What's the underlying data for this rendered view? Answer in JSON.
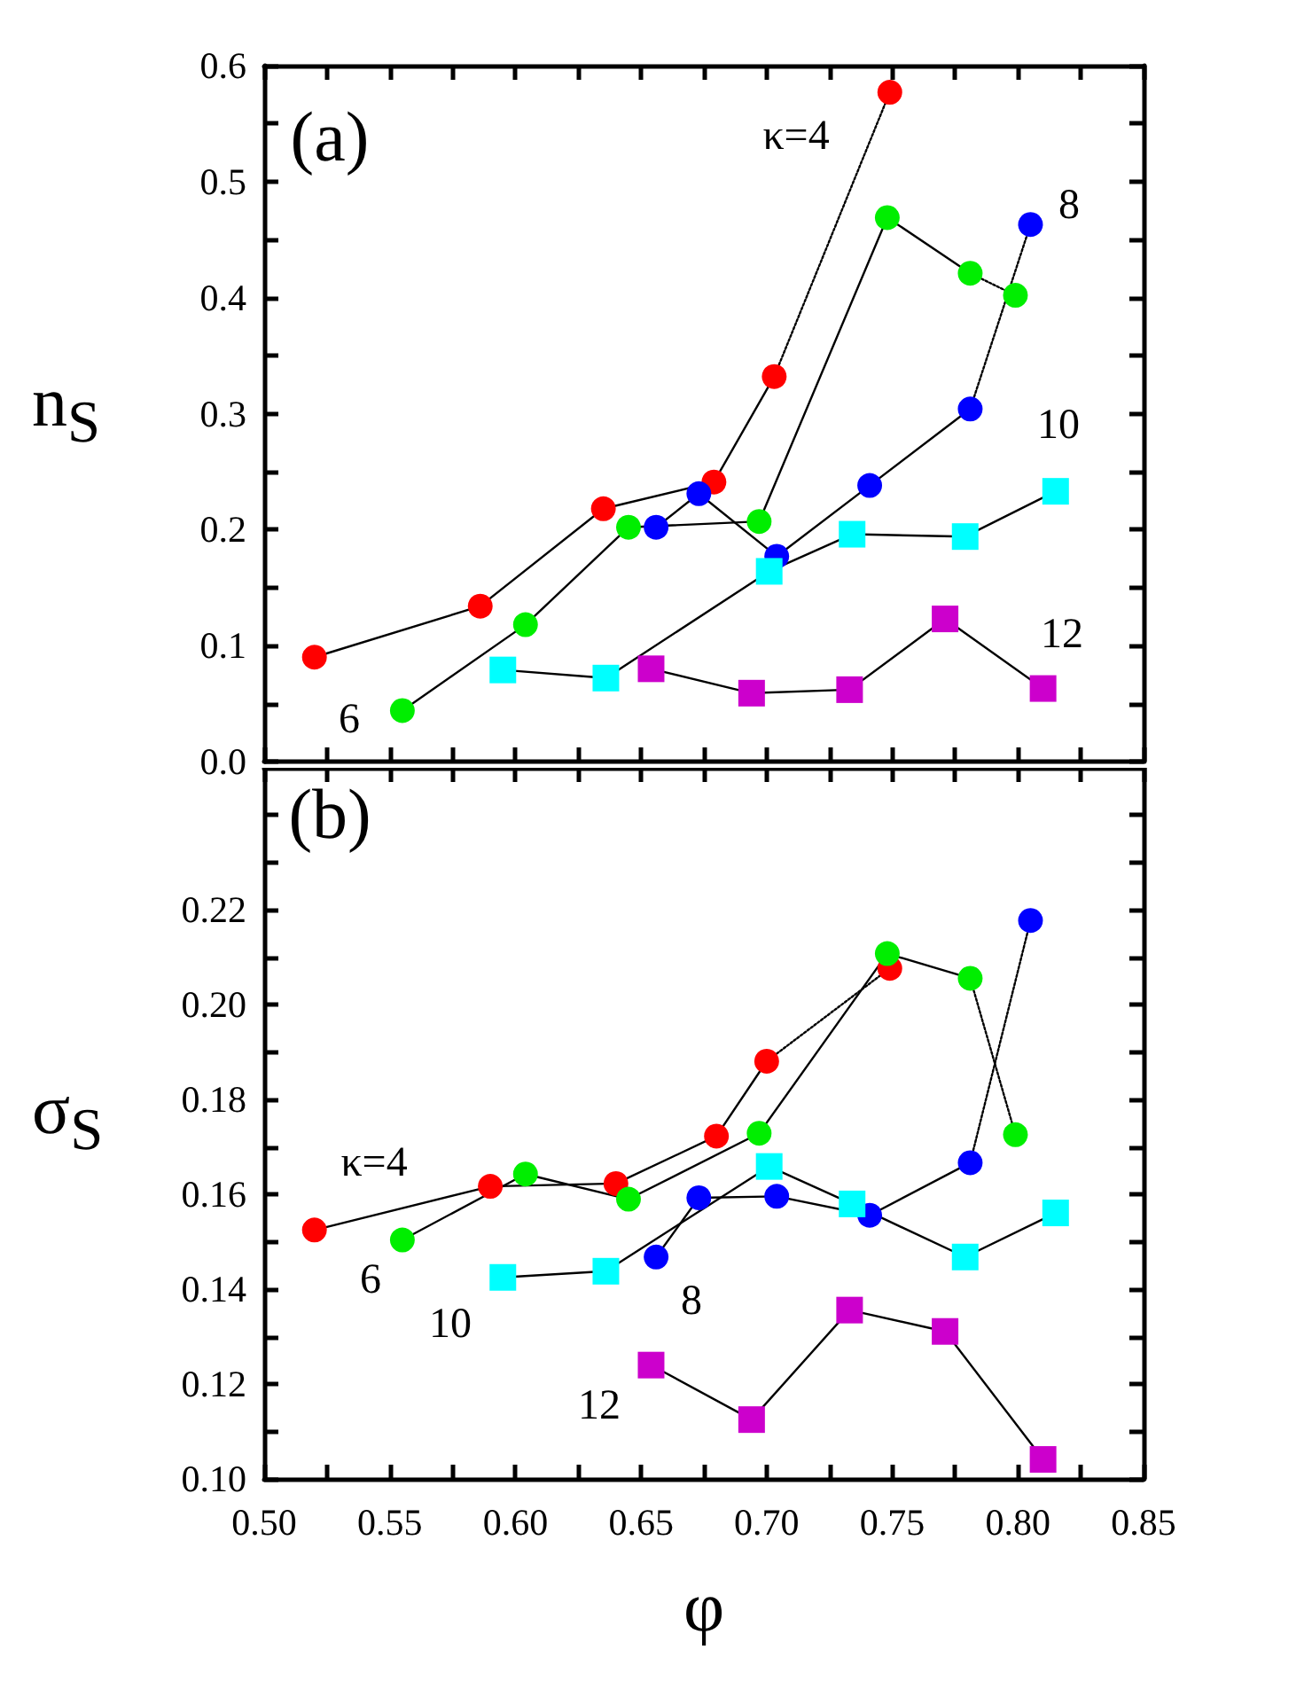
{
  "chart_data": [
    {
      "type": "line",
      "ylabel": "n$_{S}$",
      "xlim": [
        0.5,
        0.85
      ],
      "ylim": [
        0.0,
        0.6
      ],
      "tick_labels": "y",
      "marker": "circle",
      "line_style": "solid",
      "xticks": [
        {
          "value": 0.5,
          "label": null
        },
        {
          "value": 0.525,
          "label": null
        },
        {
          "value": 0.55,
          "label": null
        },
        {
          "value": 0.575,
          "label": null
        },
        {
          "value": 0.6,
          "label": null
        },
        {
          "value": 0.625,
          "label": null
        },
        {
          "value": 0.65,
          "label": null
        },
        {
          "value": 0.675,
          "label": null
        },
        {
          "value": 0.7,
          "label": null
        },
        {
          "value": 0.725,
          "label": null
        },
        {
          "value": 0.75,
          "label": null
        },
        {
          "value": 0.775,
          "label": null
        },
        {
          "value": 0.8,
          "label": null
        },
        {
          "value": 0.825,
          "label": null
        },
        {
          "value": 0.85,
          "label": null
        }
      ],
      "yticks": [
        {
          "value": 0.0,
          "label": "0.0"
        },
        {
          "value": 0.05,
          "label": null
        },
        {
          "value": 0.1,
          "label": "0.1"
        },
        {
          "value": 0.15,
          "label": null
        },
        {
          "value": 0.2,
          "label": "0.2"
        },
        {
          "value": 0.25,
          "label": null
        },
        {
          "value": 0.3,
          "label": "0.3"
        },
        {
          "value": 0.35,
          "label": null
        },
        {
          "value": 0.4,
          "label": "0.4"
        },
        {
          "value": 0.45,
          "label": null
        },
        {
          "value": 0.5,
          "label": "0.5"
        },
        {
          "value": 0.55,
          "label": null
        },
        {
          "value": 0.6,
          "label": "0.6"
        }
      ],
      "series": [
        {
          "color": "#ff0000",
          "x": [
            0.52,
            0.586,
            0.635,
            0.679,
            0.703
          ],
          "values": [
            0.09,
            0.134,
            0.218,
            0.241,
            0.332
          ]
        },
        {
          "color": "#000000",
          "marker": "none",
          "line_style": "dotted",
          "x": [
            0.703,
            0.749
          ],
          "values": [
            0.332,
            0.577
          ]
        },
        {
          "color": "#ff0000",
          "x": [
            0.749
          ],
          "values": [
            0.577
          ]
        },
        {
          "color": "#00ee00",
          "x": [
            0.555,
            0.604,
            0.645,
            0.697,
            0.748,
            0.781
          ],
          "values": [
            0.044,
            0.118,
            0.202,
            0.207,
            0.469,
            0.421
          ]
        },
        {
          "color": "#000000",
          "marker": "none",
          "line_style": "dotted",
          "x": [
            0.781,
            0.799
          ],
          "values": [
            0.421,
            0.402
          ]
        },
        {
          "color": "#00ee00",
          "x": [
            0.799
          ],
          "values": [
            0.402
          ]
        },
        {
          "color": "#0000ff",
          "x": [
            0.656,
            0.673,
            0.704,
            0.741,
            0.781
          ],
          "values": [
            0.202,
            0.231,
            0.177,
            0.238,
            0.304
          ]
        },
        {
          "color": "#000000",
          "marker": "none",
          "line_style": "dotted",
          "x": [
            0.781,
            0.805
          ],
          "values": [
            0.304,
            0.463
          ]
        },
        {
          "color": "#0000ff",
          "x": [
            0.805
          ],
          "values": [
            0.463
          ]
        },
        {
          "color": "#00ffff",
          "marker": "square",
          "x": [
            0.595,
            0.636,
            0.701,
            0.734,
            0.779,
            0.815
          ],
          "values": [
            0.079,
            0.072,
            0.164,
            0.196,
            0.194,
            0.233
          ]
        },
        {
          "color": "#cc00cc",
          "marker": "square",
          "x": [
            0.654,
            0.694,
            0.733,
            0.771,
            0.81
          ],
          "values": [
            0.08,
            0.059,
            0.062,
            0.123,
            0.063
          ]
        }
      ],
      "annotations": [
        "(a)",
        "κ=4",
        "8",
        "10",
        "12",
        "6"
      ]
    },
    {
      "type": "line",
      "xlabel": "φ",
      "ylabel": "σ$_{S}$",
      "xlim": [
        0.5,
        0.85
      ],
      "ylim": [
        0.1,
        0.25
      ],
      "marker": "circle",
      "line_style": "solid",
      "xticks": [
        {
          "value": 0.5,
          "label": "0.50"
        },
        {
          "value": 0.525,
          "label": null
        },
        {
          "value": 0.55,
          "label": "0.55"
        },
        {
          "value": 0.575,
          "label": null
        },
        {
          "value": 0.6,
          "label": "0.60"
        },
        {
          "value": 0.625,
          "label": null
        },
        {
          "value": 0.65,
          "label": "0.65"
        },
        {
          "value": 0.675,
          "label": null
        },
        {
          "value": 0.7,
          "label": "0.70"
        },
        {
          "value": 0.725,
          "label": null
        },
        {
          "value": 0.75,
          "label": "0.75"
        },
        {
          "value": 0.775,
          "label": null
        },
        {
          "value": 0.8,
          "label": "0.80"
        },
        {
          "value": 0.825,
          "label": null
        },
        {
          "value": 0.85,
          "label": "0.85"
        }
      ],
      "yticks": [
        {
          "value": 0.1,
          "label": "0.10"
        },
        {
          "value": 0.11,
          "label": null
        },
        {
          "value": 0.12,
          "label": "0.12"
        },
        {
          "value": 0.13,
          "label": null
        },
        {
          "value": 0.14,
          "label": "0.14"
        },
        {
          "value": 0.15,
          "label": null
        },
        {
          "value": 0.16,
          "label": "0.16"
        },
        {
          "value": 0.17,
          "label": null
        },
        {
          "value": 0.18,
          "label": "0.18"
        },
        {
          "value": 0.19,
          "label": null
        },
        {
          "value": 0.2,
          "label": "0.20"
        },
        {
          "value": 0.21,
          "label": null
        },
        {
          "value": 0.22,
          "label": "0.22"
        },
        {
          "value": 0.23,
          "label": null
        },
        {
          "value": 0.24,
          "label": null
        }
      ],
      "series": [
        {
          "color": "#ff0000",
          "x": [
            0.52,
            0.59,
            0.64,
            0.68,
            0.7
          ],
          "values": [
            0.1525,
            0.1617,
            0.1623,
            0.1723,
            0.1881
          ]
        },
        {
          "color": "#000000",
          "marker": "none",
          "line_style": "dotted",
          "x": [
            0.7,
            0.749
          ],
          "values": [
            0.1881,
            0.2077
          ]
        },
        {
          "color": "#ff0000",
          "x": [
            0.749
          ],
          "values": [
            0.2077
          ]
        },
        {
          "color": "#00ee00",
          "x": [
            0.555,
            0.604,
            0.645,
            0.697,
            0.748,
            0.781
          ],
          "values": [
            0.1504,
            0.1643,
            0.159,
            0.1729,
            0.2108,
            0.2056
          ]
        },
        {
          "color": "#000000",
          "marker": "none",
          "line_style": "dotted",
          "x": [
            0.781,
            0.799
          ],
          "values": [
            0.2056,
            0.1726
          ]
        },
        {
          "color": "#00ee00",
          "x": [
            0.799
          ],
          "values": [
            0.1726
          ]
        },
        {
          "color": "#0000ff",
          "x": [
            0.656,
            0.673,
            0.704,
            0.741,
            0.781
          ],
          "values": [
            0.1468,
            0.1593,
            0.1596,
            0.1556,
            0.1667
          ]
        },
        {
          "color": "#000000",
          "marker": "none",
          "line_style": "dotted",
          "x": [
            0.781,
            0.805
          ],
          "values": [
            0.1667,
            0.2178
          ]
        },
        {
          "color": "#0000ff",
          "x": [
            0.805
          ],
          "values": [
            0.2178
          ]
        },
        {
          "color": "#00ffff",
          "marker": "square",
          "x": [
            0.595,
            0.636,
            0.701,
            0.734,
            0.779,
            0.815
          ],
          "values": [
            0.1425,
            0.1438,
            0.1659,
            0.158,
            0.1468,
            0.1561
          ]
        },
        {
          "color": "#cc00cc",
          "marker": "square",
          "x": [
            0.654,
            0.694,
            0.733,
            0.771,
            0.81
          ],
          "values": [
            0.124,
            0.1125,
            0.1356,
            0.1311,
            0.1041
          ]
        }
      ],
      "annotations": [
        "(b)",
        "κ=4",
        "6",
        "10",
        "8",
        "12"
      ]
    }
  ]
}
